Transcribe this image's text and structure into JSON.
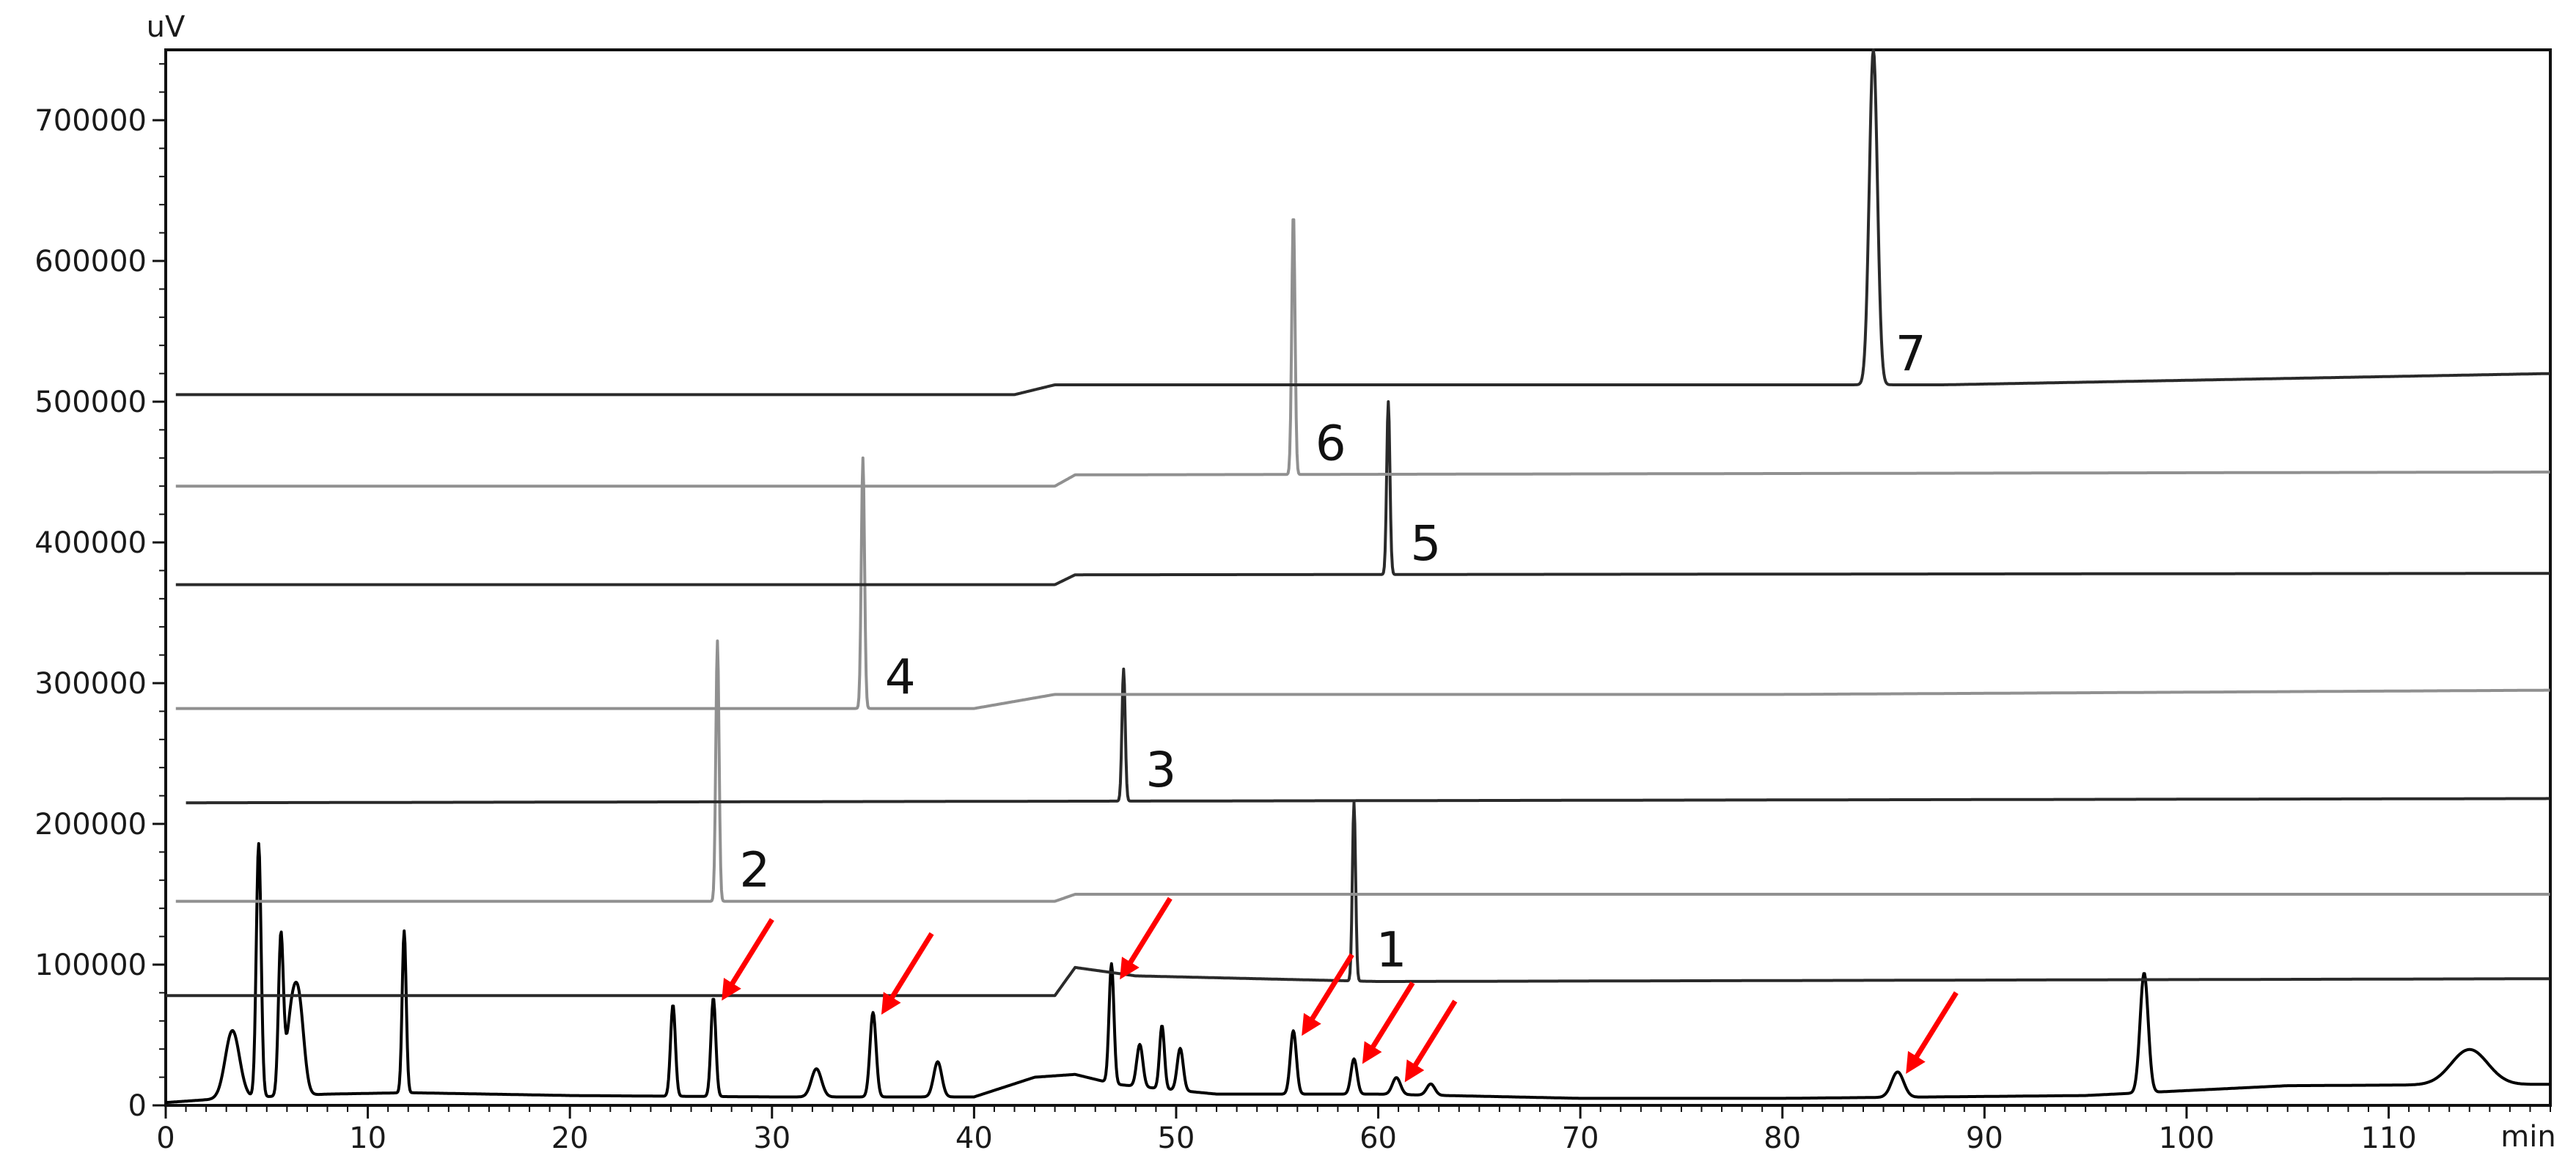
{
  "chart_data": {
    "type": "line",
    "title": "",
    "xlabel": "",
    "ylabel": "",
    "x_unit": "min",
    "y_unit": "uV",
    "xlim": [
      0,
      118
    ],
    "ylim": [
      0,
      750000
    ],
    "x_ticks": [
      0,
      10,
      20,
      30,
      40,
      50,
      60,
      70,
      80,
      90,
      100,
      110
    ],
    "x_tick_labels": [
      "0",
      "10",
      "20",
      "30",
      "40",
      "50",
      "60",
      "70",
      "80",
      "90",
      "100",
      "110"
    ],
    "y_ticks": [
      0,
      100000,
      200000,
      300000,
      400000,
      500000,
      600000,
      700000
    ],
    "y_tick_labels": [
      "0",
      "100000",
      "200000",
      "300000",
      "400000",
      "500000",
      "600000",
      "700000"
    ],
    "grid": false,
    "legend": "none",
    "sample_series": {
      "color": "#000000",
      "baseline": [
        [
          0,
          2000
        ],
        [
          3,
          5000
        ],
        [
          8,
          8000
        ],
        [
          12,
          9000
        ],
        [
          20,
          7000
        ],
        [
          30,
          6000
        ],
        [
          40,
          6000
        ],
        [
          43,
          20000
        ],
        [
          45,
          22000
        ],
        [
          47,
          15000
        ],
        [
          52,
          8000
        ],
        [
          60,
          8000
        ],
        [
          70,
          5000
        ],
        [
          80,
          5000
        ],
        [
          95,
          7000
        ],
        [
          105,
          14000
        ],
        [
          118,
          15000
        ]
      ],
      "peaks": [
        [
          3.3,
          48000,
          0.35
        ],
        [
          4.6,
          180000,
          0.12
        ],
        [
          5.7,
          110000,
          0.12
        ],
        [
          6.2,
          50000,
          0.25
        ],
        [
          6.6,
          60000,
          0.25
        ],
        [
          11.8,
          115000,
          0.1
        ],
        [
          25.1,
          65000,
          0.12
        ],
        [
          27.1,
          70000,
          0.12
        ],
        [
          32.2,
          20000,
          0.25
        ],
        [
          35.0,
          60000,
          0.15
        ],
        [
          38.2,
          25000,
          0.2
        ],
        [
          46.8,
          85000,
          0.12
        ],
        [
          48.2,
          30000,
          0.15
        ],
        [
          49.3,
          45000,
          0.12
        ],
        [
          50.2,
          30000,
          0.15
        ],
        [
          55.8,
          45000,
          0.15
        ],
        [
          58.8,
          25000,
          0.15
        ],
        [
          60.9,
          12000,
          0.2
        ],
        [
          62.6,
          8000,
          0.2
        ],
        [
          85.7,
          18000,
          0.3
        ],
        [
          97.9,
          85000,
          0.2
        ],
        [
          114.0,
          25000,
          0.9
        ]
      ]
    },
    "standards": [
      {
        "label": "1",
        "baseline": 78000,
        "rise": [
          [
            44,
            78000
          ],
          [
            45,
            98000
          ],
          [
            48,
            92000
          ],
          [
            60,
            88000
          ],
          [
            118,
            90000
          ]
        ],
        "peak_x": 58.8,
        "peak_y": 215000,
        "color": "#2a2a2a"
      },
      {
        "label": "2",
        "baseline": 145000,
        "rise": [
          [
            44,
            145000
          ],
          [
            45,
            150000
          ],
          [
            118,
            150000
          ]
        ],
        "peak_x": 27.3,
        "peak_y": 330000,
        "color": "#909090"
      },
      {
        "label": "3",
        "baseline": 215000,
        "rise": [
          [
            118,
            218000
          ]
        ],
        "peak_x": 47.4,
        "peak_y": 310000,
        "color": "#2a2a2a"
      },
      {
        "label": "4",
        "baseline": 282000,
        "rise": [
          [
            40,
            282000
          ],
          [
            44,
            292000
          ],
          [
            80,
            292000
          ],
          [
            118,
            295000
          ]
        ],
        "peak_x": 34.5,
        "peak_y": 460000,
        "color": "#909090"
      },
      {
        "label": "5",
        "baseline": 370000,
        "rise": [
          [
            44,
            370000
          ],
          [
            45,
            377000
          ],
          [
            118,
            378000
          ]
        ],
        "peak_x": 60.5,
        "peak_y": 500000,
        "color": "#2a2a2a"
      },
      {
        "label": "6",
        "baseline": 440000,
        "rise": [
          [
            44,
            440000
          ],
          [
            45,
            448000
          ],
          [
            118,
            450000
          ]
        ],
        "peak_x": 55.8,
        "peak_y": 635000,
        "color": "#909090"
      },
      {
        "label": "7",
        "baseline": 505000,
        "rise": [
          [
            42,
            505000
          ],
          [
            44,
            512000
          ],
          [
            88,
            512000
          ],
          [
            118,
            520000
          ]
        ],
        "peak_x": 84.5,
        "peak_y": 750000,
        "color": "#2a2a2a"
      }
    ],
    "arrows": [
      {
        "x": 27.1,
        "y": 70000
      },
      {
        "x": 35.0,
        "y": 60000
      },
      {
        "x": 46.8,
        "y": 85000
      },
      {
        "x": 55.8,
        "y": 45000
      },
      {
        "x": 58.8,
        "y": 25000
      },
      {
        "x": 60.9,
        "y": 12000
      },
      {
        "x": 85.7,
        "y": 18000
      }
    ],
    "arrow_color": "#ff0000"
  }
}
